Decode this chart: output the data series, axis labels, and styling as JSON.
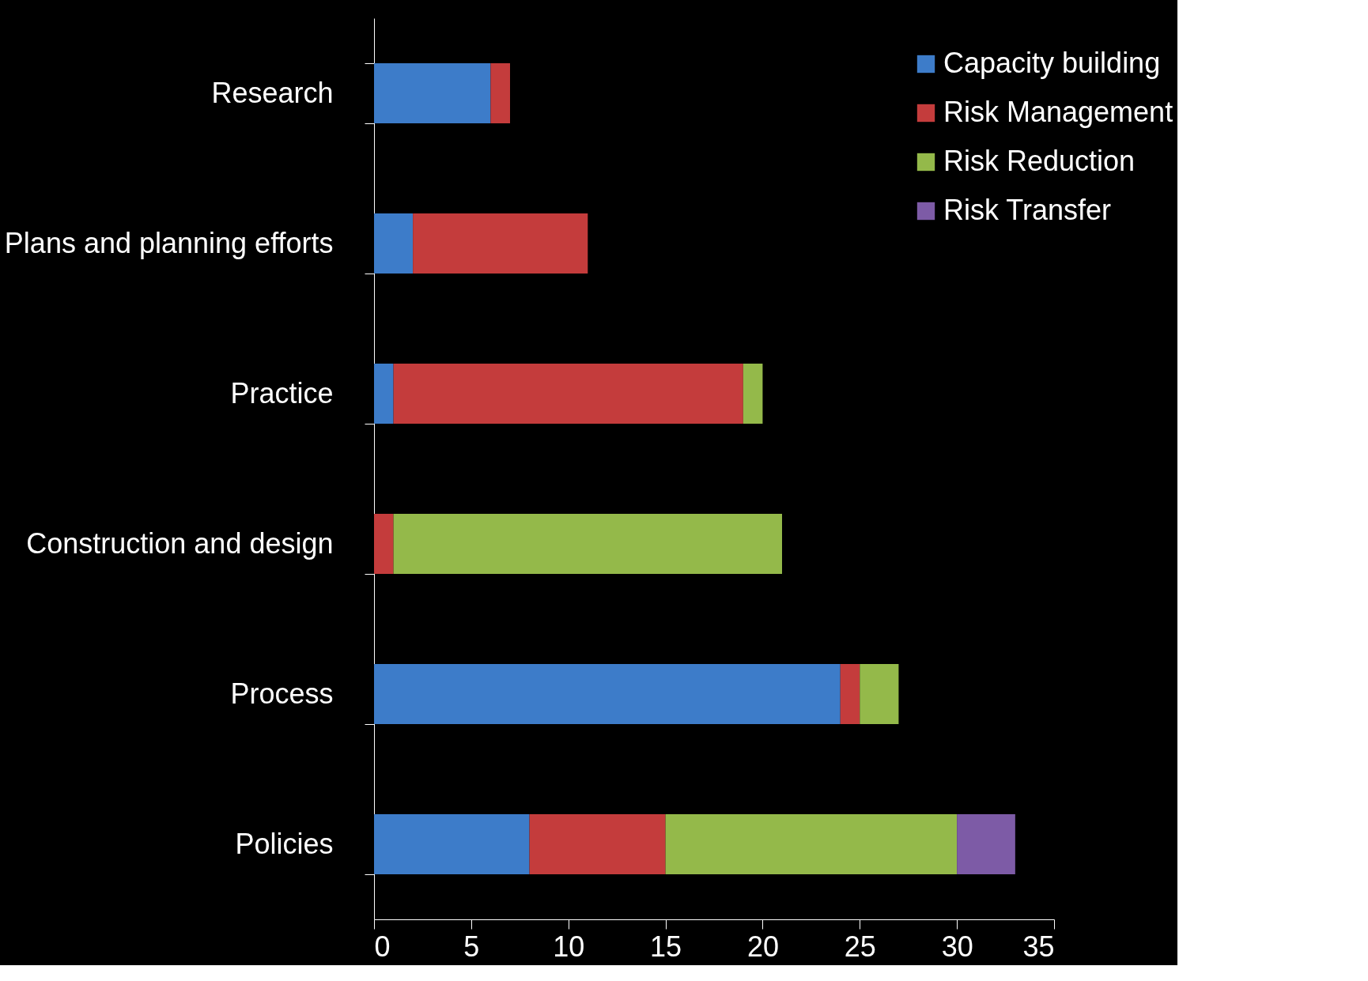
{
  "chart_data": {
    "type": "bar",
    "orientation": "horizontal",
    "stacked": true,
    "categories": [
      "Research",
      "Plans and planning efforts",
      "Practice",
      "Construction and design",
      "Process",
      "Policies"
    ],
    "series": [
      {
        "name": "Capacity building",
        "color": "#3d7cc9",
        "values": [
          6,
          2,
          1,
          null,
          24,
          8
        ]
      },
      {
        "name": "Risk Management",
        "color": "#c43c3c",
        "values": [
          1,
          9,
          18,
          1,
          1,
          7
        ]
      },
      {
        "name": "Risk Reduction",
        "color": "#94b94a",
        "values": [
          null,
          null,
          1,
          20,
          2,
          15
        ]
      },
      {
        "name": "Risk Transfer",
        "color": "#7d5ba6",
        "values": [
          null,
          null,
          null,
          null,
          null,
          3
        ]
      }
    ],
    "xlim": [
      0,
      35
    ],
    "xticks": [
      0,
      5,
      10,
      15,
      20,
      25,
      30,
      35
    ],
    "grid": false,
    "legend": "top right"
  }
}
